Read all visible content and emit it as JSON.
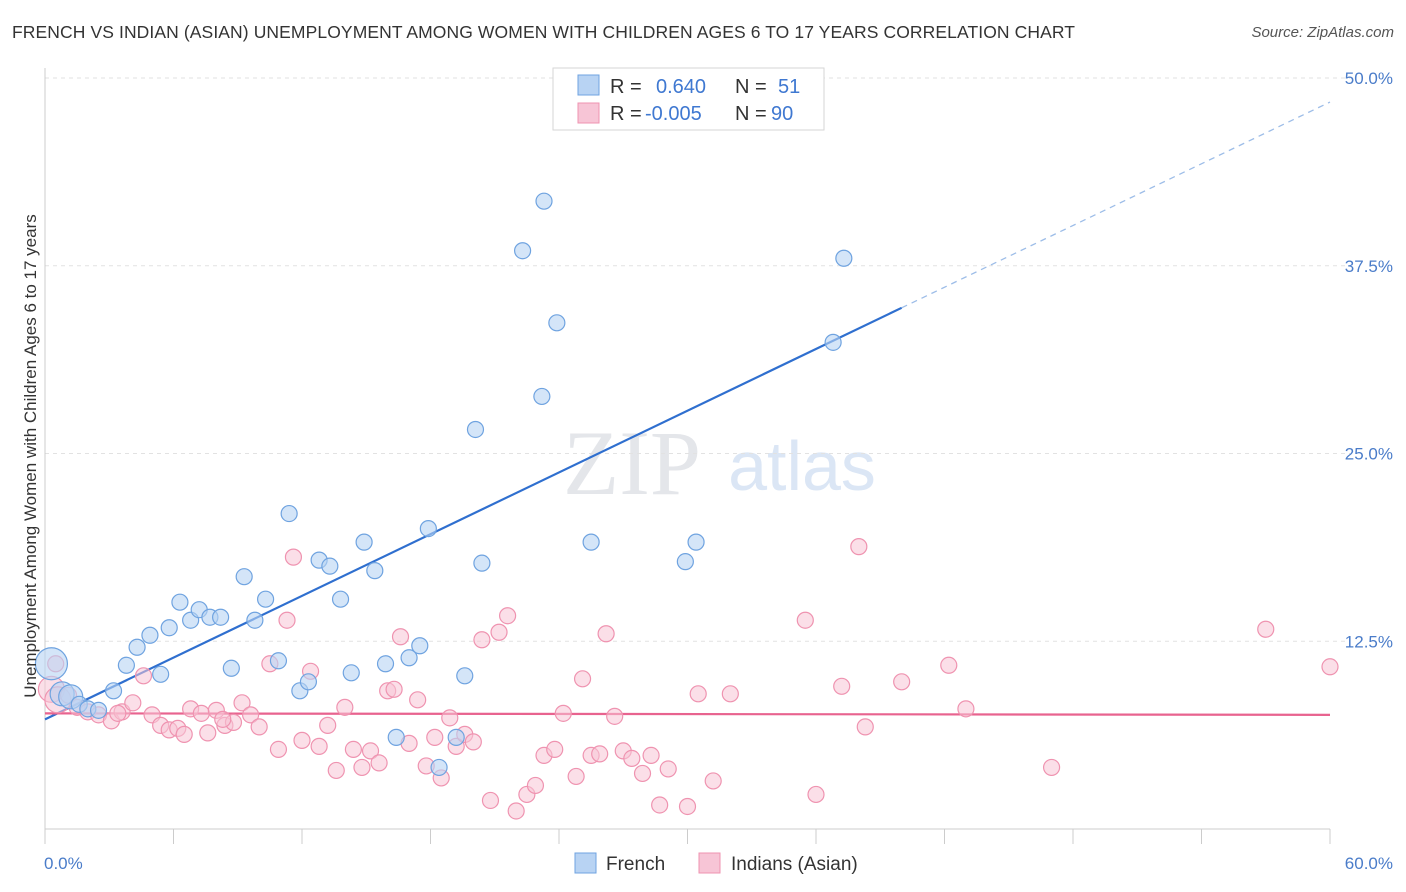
{
  "header": {
    "title": "FRENCH VS INDIAN (ASIAN) UNEMPLOYMENT AMONG WOMEN WITH CHILDREN AGES 6 TO 17 YEARS CORRELATION CHART",
    "source": "Source: ZipAtlas.com"
  },
  "watermark": {
    "zip": "ZIP",
    "atlas": "atlas"
  },
  "colors": {
    "french": "#6fa3e0",
    "french_fill": "#b8d3f3",
    "french_line": "#2f6fcf",
    "indian": "#ef93b0",
    "indian_fill": "#f7c5d6",
    "indian_line": "#e8638f",
    "axis_label": "#4a7cc9"
  },
  "legend": {
    "rows": [
      {
        "r_label": "R =",
        "r_value": "0.640",
        "n_label": "N =",
        "n_value": "51"
      },
      {
        "r_label": "R =",
        "r_value": "-0.005",
        "n_label": "N =",
        "n_value": "90"
      }
    ]
  },
  "chart_data": {
    "type": "scatter",
    "title": "FRENCH VS INDIAN (ASIAN) UNEMPLOYMENT AMONG WOMEN WITH CHILDREN AGES 6 TO 17 YEARS CORRELATION CHART",
    "xlabel": "",
    "ylabel": "Unemployment Among Women with Children Ages 6 to 17 years",
    "xlim": [
      0,
      60
    ],
    "ylim": [
      0,
      50
    ],
    "x_tick_labels": [
      "0.0%",
      "60.0%"
    ],
    "y_tick_labels": [
      "12.5%",
      "25.0%",
      "37.5%",
      "50.0%"
    ],
    "y_ticks": [
      12.5,
      25.0,
      37.5,
      50.0
    ],
    "grid": true,
    "legend_position": "top-center",
    "series": [
      {
        "name": "French",
        "r": 0.64,
        "n": 51,
        "trend": {
          "x0": 0,
          "y0": 7.3,
          "x1": 40,
          "y1": 34.7,
          "dashed_to_x": 60,
          "dashed_to_y": 48.4
        },
        "points": [
          [
            0.3,
            11.0
          ],
          [
            0.8,
            9.0
          ],
          [
            1.2,
            8.8
          ],
          [
            1.6,
            8.3
          ],
          [
            2.0,
            8.0
          ],
          [
            2.5,
            7.9
          ],
          [
            3.2,
            9.2
          ],
          [
            3.8,
            10.9
          ],
          [
            4.3,
            12.1
          ],
          [
            4.9,
            12.9
          ],
          [
            5.4,
            10.3
          ],
          [
            5.8,
            13.4
          ],
          [
            6.3,
            15.1
          ],
          [
            6.8,
            13.9
          ],
          [
            7.2,
            14.6
          ],
          [
            7.7,
            14.1
          ],
          [
            8.2,
            14.1
          ],
          [
            8.7,
            10.7
          ],
          [
            9.3,
            16.8
          ],
          [
            9.8,
            13.9
          ],
          [
            10.3,
            15.3
          ],
          [
            10.9,
            11.2
          ],
          [
            11.4,
            21.0
          ],
          [
            11.9,
            9.2
          ],
          [
            12.3,
            9.8
          ],
          [
            12.8,
            17.9
          ],
          [
            13.3,
            17.5
          ],
          [
            13.8,
            15.3
          ],
          [
            14.3,
            10.4
          ],
          [
            14.9,
            19.1
          ],
          [
            15.4,
            17.2
          ],
          [
            15.9,
            11.0
          ],
          [
            16.4,
            6.1
          ],
          [
            17.0,
            11.4
          ],
          [
            17.5,
            12.2
          ],
          [
            17.9,
            20.0
          ],
          [
            18.4,
            4.1
          ],
          [
            19.2,
            6.1
          ],
          [
            19.6,
            10.2
          ],
          [
            20.1,
            26.6
          ],
          [
            20.4,
            17.7
          ],
          [
            22.3,
            38.5
          ],
          [
            23.2,
            28.8
          ],
          [
            23.3,
            41.8
          ],
          [
            23.9,
            33.7
          ],
          [
            25.5,
            19.1
          ],
          [
            29.9,
            17.8
          ],
          [
            30.4,
            19.1
          ],
          [
            36.8,
            32.4
          ],
          [
            37.3,
            38.0
          ],
          [
            24.9,
            49.0
          ]
        ]
      },
      {
        "name": "Indians (Asian)",
        "r": -0.005,
        "n": 90,
        "trend": {
          "x0": 0,
          "y0": 7.7,
          "x1": 60,
          "y1": 7.6
        },
        "points": [
          [
            0.3,
            9.3
          ],
          [
            0.6,
            8.6
          ],
          [
            1.1,
            8.9
          ],
          [
            1.5,
            8.1
          ],
          [
            2.0,
            7.8
          ],
          [
            2.5,
            7.6
          ],
          [
            3.1,
            7.2
          ],
          [
            3.6,
            7.8
          ],
          [
            4.1,
            8.4
          ],
          [
            4.6,
            10.2
          ],
          [
            5.0,
            7.6
          ],
          [
            5.4,
            6.9
          ],
          [
            5.8,
            6.6
          ],
          [
            6.2,
            6.7
          ],
          [
            6.5,
            6.3
          ],
          [
            6.8,
            8.0
          ],
          [
            7.3,
            7.7
          ],
          [
            7.6,
            6.4
          ],
          [
            8.0,
            7.9
          ],
          [
            8.4,
            6.9
          ],
          [
            8.8,
            7.1
          ],
          [
            9.2,
            8.4
          ],
          [
            9.6,
            7.6
          ],
          [
            10.0,
            6.8
          ],
          [
            10.5,
            11.0
          ],
          [
            10.9,
            5.3
          ],
          [
            11.3,
            13.9
          ],
          [
            11.6,
            18.1
          ],
          [
            12.0,
            5.9
          ],
          [
            12.4,
            10.5
          ],
          [
            12.8,
            5.5
          ],
          [
            13.2,
            6.9
          ],
          [
            13.6,
            3.9
          ],
          [
            14.0,
            8.1
          ],
          [
            14.4,
            5.3
          ],
          [
            14.8,
            4.1
          ],
          [
            15.2,
            5.2
          ],
          [
            15.6,
            4.4
          ],
          [
            16.0,
            9.2
          ],
          [
            16.3,
            9.3
          ],
          [
            16.6,
            12.8
          ],
          [
            17.0,
            5.7
          ],
          [
            17.4,
            8.6
          ],
          [
            17.8,
            4.2
          ],
          [
            18.2,
            6.1
          ],
          [
            18.5,
            3.4
          ],
          [
            18.9,
            7.4
          ],
          [
            19.2,
            5.5
          ],
          [
            19.6,
            6.3
          ],
          [
            20.0,
            5.8
          ],
          [
            20.4,
            12.6
          ],
          [
            20.8,
            1.9
          ],
          [
            21.2,
            13.1
          ],
          [
            21.6,
            14.2
          ],
          [
            22.0,
            1.2
          ],
          [
            22.5,
            2.3
          ],
          [
            22.9,
            2.9
          ],
          [
            23.3,
            4.9
          ],
          [
            23.8,
            5.3
          ],
          [
            24.2,
            7.7
          ],
          [
            24.8,
            3.5
          ],
          [
            25.1,
            10.0
          ],
          [
            25.5,
            4.9
          ],
          [
            25.9,
            5.0
          ],
          [
            26.2,
            13.0
          ],
          [
            26.6,
            7.5
          ],
          [
            27.0,
            5.2
          ],
          [
            27.4,
            4.7
          ],
          [
            27.9,
            3.7
          ],
          [
            28.3,
            4.9
          ],
          [
            28.7,
            1.6
          ],
          [
            29.1,
            4.0
          ],
          [
            30.0,
            1.5
          ],
          [
            30.5,
            9.0
          ],
          [
            31.2,
            3.2
          ],
          [
            32.0,
            9.0
          ],
          [
            35.5,
            13.9
          ],
          [
            36.0,
            2.3
          ],
          [
            37.2,
            9.5
          ],
          [
            38.0,
            18.8
          ],
          [
            38.3,
            6.8
          ],
          [
            40.0,
            9.8
          ],
          [
            42.2,
            10.9
          ],
          [
            43.0,
            8.0
          ],
          [
            47.0,
            4.1
          ],
          [
            57.0,
            13.3
          ],
          [
            60.0,
            10.8
          ],
          [
            0.5,
            11.0
          ],
          [
            8.3,
            7.3
          ],
          [
            3.4,
            7.7
          ]
        ]
      }
    ]
  },
  "bottom_legend": {
    "items": [
      "French",
      "Indians (Asian)"
    ]
  }
}
